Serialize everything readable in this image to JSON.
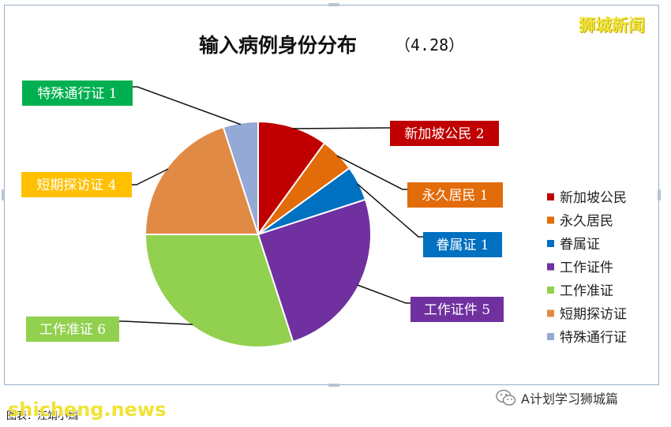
{
  "brand": "狮城新闻",
  "source_text": "图表：汪靖小嫣",
  "watermark_url": "shicheng.news",
  "watermark_account": "A计划学习狮城篇",
  "chart_data": {
    "type": "pie",
    "title": "输入病例身份分布",
    "title_date": "（4.28）",
    "legend_position": "right",
    "start_angle_deg": 0,
    "direction": "clockwise",
    "slices": [
      {
        "name": "新加坡公民",
        "value": 2,
        "color": "#c00000",
        "data_label": "新加坡公民 2",
        "label_color": "#c00000"
      },
      {
        "name": "永久居民",
        "value": 1,
        "color": "#e26b0a",
        "data_label": "永久居民 1",
        "label_color": "#e26b0a"
      },
      {
        "name": "眷属证",
        "value": 1,
        "color": "#0070c0",
        "data_label": "眷属证 1",
        "label_color": "#0070c0"
      },
      {
        "name": "工作证件",
        "value": 5,
        "color": "#7030a0",
        "data_label": "工作证件 5",
        "label_color": "#7030a0"
      },
      {
        "name": "工作准证",
        "value": 6,
        "color": "#92d050",
        "data_label": "工作准证 6",
        "label_color": "#92d050"
      },
      {
        "name": "短期探访证",
        "value": 4,
        "color": "#e08a45",
        "data_label": "短期探访证 4",
        "label_color": "#ffc000"
      },
      {
        "name": "特殊通行证",
        "value": 1,
        "color": "#95a9d6",
        "data_label": "特殊通行证 1",
        "label_color": "#00b050"
      }
    ]
  }
}
